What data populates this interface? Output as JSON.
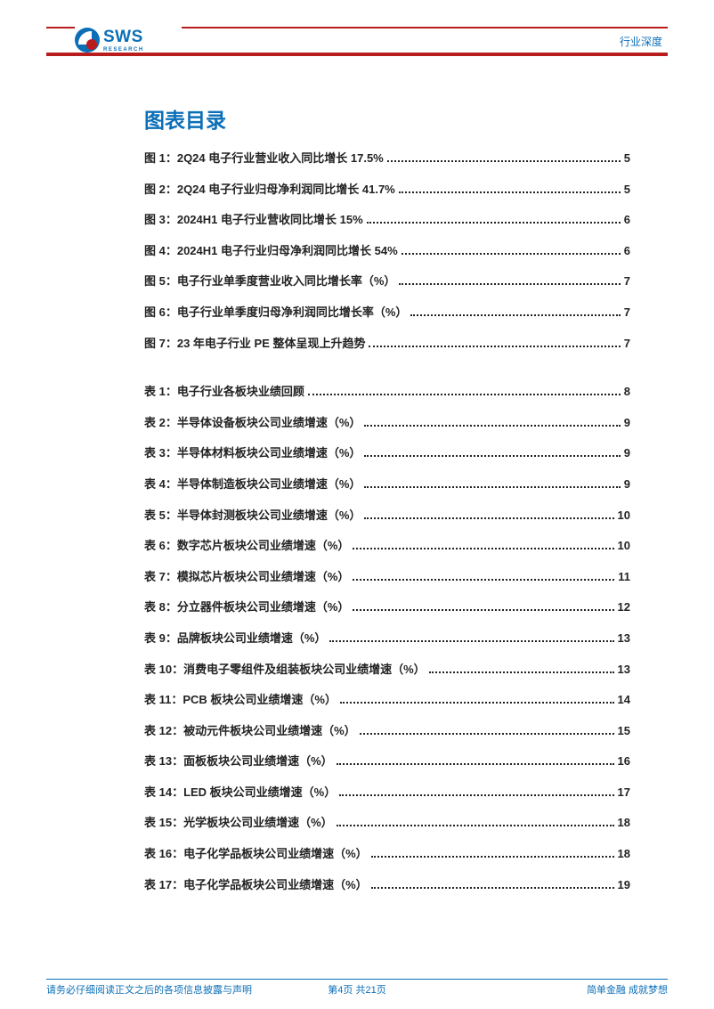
{
  "header": {
    "logo": {
      "line1": "SWS",
      "line2": "RESEARCH"
    },
    "category": "行业深度",
    "rule_color": "#b91c1c",
    "brand_color": "#0b6fb8"
  },
  "toc": {
    "title": "图表目录",
    "title_color": "#0b6fb8",
    "title_fontsize": 23,
    "entry_fontsize": 13,
    "entry_color": "#222222",
    "figures": [
      {
        "label": "图 1：2Q24 电子行业营业收入同比增长 17.5%",
        "page": "5"
      },
      {
        "label": "图 2：2Q24 电子行业归母净利润同比增长 41.7%",
        "page": "5"
      },
      {
        "label": "图 3：2024H1 电子行业营收同比增长 15%",
        "page": "6"
      },
      {
        "label": "图 4：2024H1 电子行业归母净利润同比增长 54%",
        "page": "6"
      },
      {
        "label": "图 5：电子行业单季度营业收入同比增长率（%）",
        "page": "7"
      },
      {
        "label": "图 6：电子行业单季度归母净利润同比增长率（%）",
        "page": "7"
      },
      {
        "label": "图 7：23 年电子行业 PE 整体呈现上升趋势",
        "page": "7"
      }
    ],
    "tables": [
      {
        "label": "表 1：电子行业各板块业绩回顾",
        "page": "8"
      },
      {
        "label": "表 2：半导体设备板块公司业绩增速（%）",
        "page": "9"
      },
      {
        "label": "表 3：半导体材料板块公司业绩增速（%）",
        "page": "9"
      },
      {
        "label": "表 4：半导体制造板块公司业绩增速（%）",
        "page": "9"
      },
      {
        "label": "表 5：半导体封测板块公司业绩增速（%）",
        "page": "10"
      },
      {
        "label": "表 6：数字芯片板块公司业绩增速（%）",
        "page": "10"
      },
      {
        "label": "表 7：模拟芯片板块公司业绩增速（%）",
        "page": "11"
      },
      {
        "label": "表 8：分立器件板块公司业绩增速（%）",
        "page": "12"
      },
      {
        "label": "表 9：品牌板块公司业绩增速（%）",
        "page": "13"
      },
      {
        "label": "表 10：消费电子零组件及组装板块公司业绩增速（%）",
        "page": "13"
      },
      {
        "label": "表 11：PCB 板块公司业绩增速（%）",
        "page": "14"
      },
      {
        "label": "表 12：被动元件板块公司业绩增速（%）",
        "page": "15"
      },
      {
        "label": "表 13：面板板块公司业绩增速（%）",
        "page": "16"
      },
      {
        "label": "表 14：LED 板块公司业绩增速（%）",
        "page": "17"
      },
      {
        "label": "表 15：光学板块公司业绩增速（%）",
        "page": "18"
      },
      {
        "label": "表 16：电子化学品板块公司业绩增速（%）",
        "page": "18"
      },
      {
        "label": "表 17：电子化学品板块公司业绩增速（%）",
        "page": "19"
      }
    ]
  },
  "footer": {
    "left": "请务必仔细阅读正文之后的各项信息披露与声明",
    "mid": "第4页 共21页",
    "right": "简单金融 成就梦想",
    "rule_color": "#0b6fb8",
    "text_color": "#0b6fb8"
  }
}
